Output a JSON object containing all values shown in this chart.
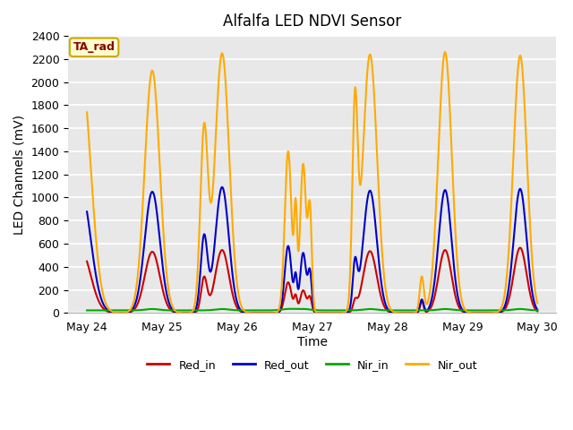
{
  "title": "Alfalfa LED NDVI Sensor",
  "xlabel": "Time",
  "ylabel": "LED Channels (mV)",
  "ylim": [
    0,
    2400
  ],
  "figure_bg": "#ffffff",
  "plot_bg": "#e8e8e8",
  "legend_label": "TA_rad",
  "legend_box_facecolor": "#ffffcc",
  "legend_box_edgecolor": "#ccaa00",
  "legend_text_color": "#880000",
  "series": {
    "Red_in": {
      "color": "#cc0000",
      "lw": 1.5
    },
    "Red_out": {
      "color": "#0000cc",
      "lw": 1.5
    },
    "Nir_in": {
      "color": "#00aa00",
      "lw": 1.5
    },
    "Nir_out": {
      "color": "#ffaa00",
      "lw": 1.5
    }
  },
  "days": [
    "May 24",
    "May 25",
    "May 26",
    "May 27",
    "May 28",
    "May 29",
    "May 30"
  ],
  "x_ticks": [
    0,
    1,
    2,
    3,
    4,
    5,
    6
  ],
  "x_range": [
    -0.25,
    6.25
  ],
  "grid_color": "#ffffff",
  "tick_fontsize": 9,
  "label_fontsize": 10,
  "title_fontsize": 12
}
